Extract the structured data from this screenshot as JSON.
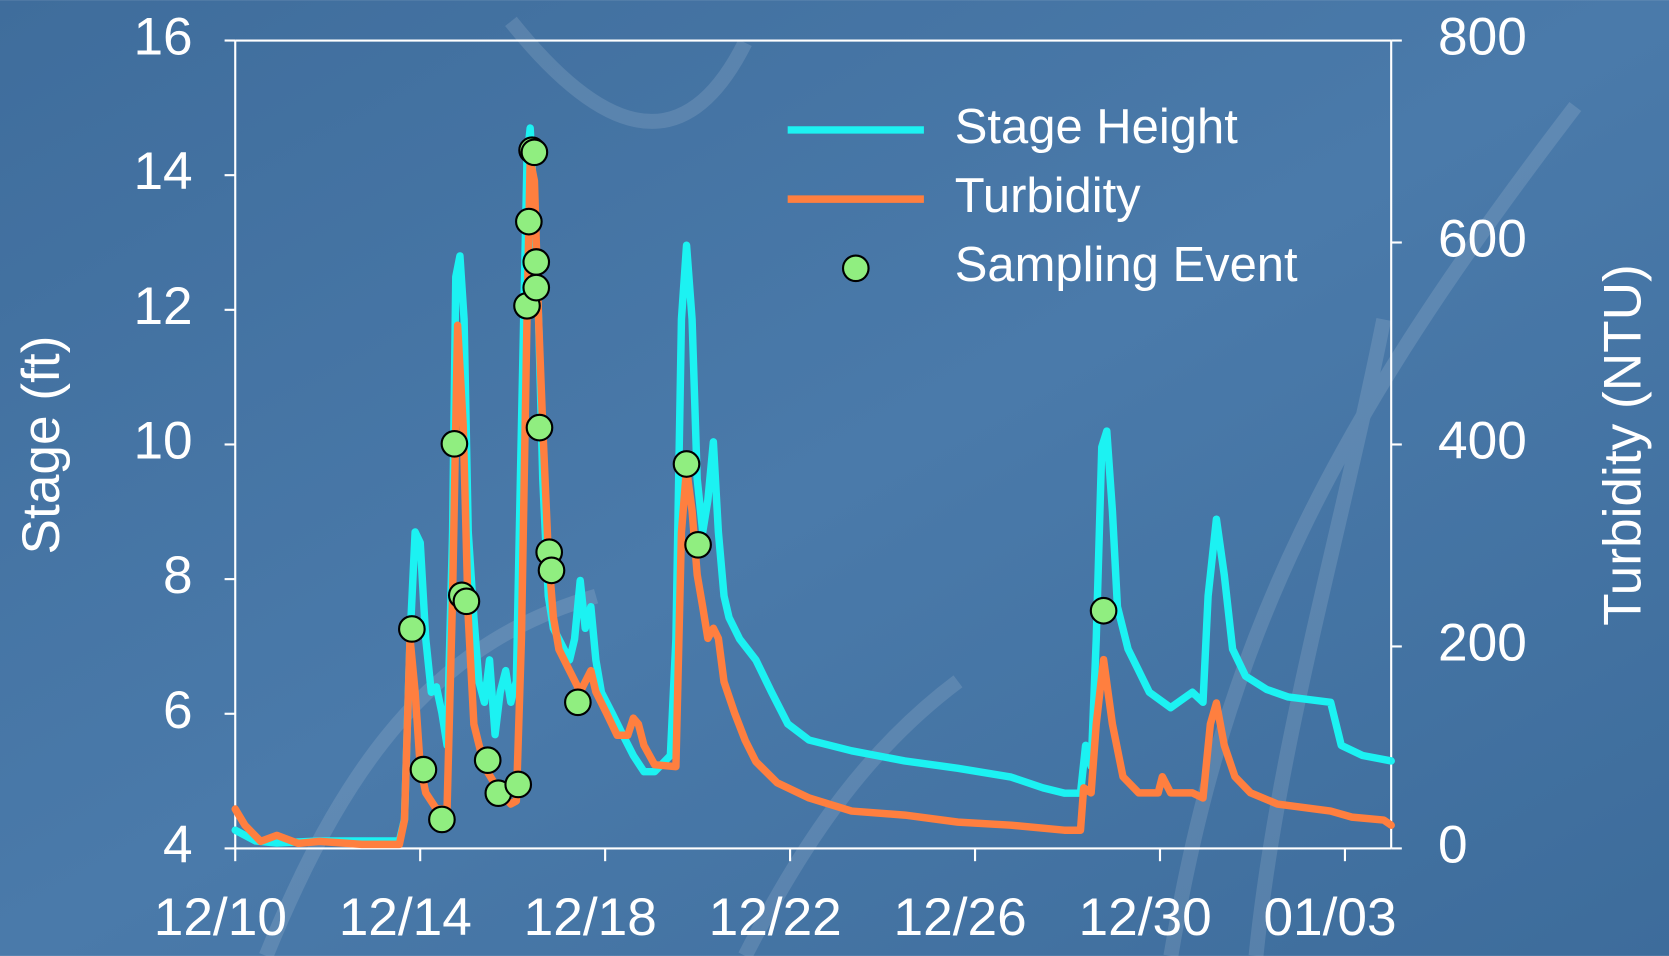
{
  "chart_data": {
    "type": "line",
    "ylabel": "Stage (ft)",
    "y2label": "Turbidity (NTU)",
    "xlim": [
      0,
      25
    ],
    "xticks": [
      {
        "value": 0,
        "label": "12/10"
      },
      {
        "value": 4,
        "label": "12/14"
      },
      {
        "value": 8,
        "label": "12/18"
      },
      {
        "value": 12,
        "label": "12/22"
      },
      {
        "value": 16,
        "label": "12/26"
      },
      {
        "value": 20,
        "label": "12/30"
      },
      {
        "value": 24,
        "label": "01/03"
      }
    ],
    "ylim": [
      4,
      16
    ],
    "yticks": [
      4,
      6,
      8,
      10,
      12,
      14,
      16
    ],
    "y2lim": [
      0,
      800
    ],
    "y2ticks": [
      0,
      200,
      400,
      600,
      800
    ],
    "legend": "top-right",
    "series": [
      {
        "name": "Stage Height",
        "type": "line",
        "color": "#1cf2f2",
        "axis": "y",
        "x": [
          0,
          0.44,
          0.9,
          1.82,
          2.74,
          3.55,
          3.66,
          3.78,
          3.89,
          4.0,
          4.12,
          4.24,
          4.35,
          4.47,
          4.58,
          4.7,
          4.77,
          4.86,
          4.95,
          5.04,
          5.16,
          5.27,
          5.39,
          5.5,
          5.62,
          5.73,
          5.85,
          5.96,
          6.08,
          6.19,
          6.31,
          6.38,
          6.47,
          6.56,
          6.65,
          6.77,
          6.88,
          7.11,
          7.23,
          7.34,
          7.46,
          7.57,
          7.69,
          7.8,
          7.92,
          8.15,
          8.38,
          8.61,
          8.84,
          9.07,
          9.41,
          9.53,
          9.65,
          9.76,
          9.88,
          9.99,
          10.11,
          10.22,
          10.34,
          10.45,
          10.57,
          10.68,
          10.91,
          11.26,
          11.6,
          11.95,
          12.41,
          13.33,
          14.48,
          15.63,
          16.78,
          17.47,
          17.93,
          18.28,
          18.39,
          18.51,
          18.62,
          18.74,
          18.85,
          18.97,
          19.08,
          19.31,
          19.54,
          19.77,
          20.23,
          20.7,
          20.93,
          21.04,
          21.22,
          21.39,
          21.57,
          21.85,
          22.31,
          22.77,
          23.69,
          23.92,
          24.38,
          25.0
        ],
        "values": [
          4.27,
          4.11,
          4.08,
          4.11,
          4.11,
          4.11,
          4.43,
          7.11,
          8.7,
          8.54,
          7.11,
          6.32,
          6.4,
          6.01,
          5.53,
          8.7,
          12.49,
          12.8,
          11.86,
          8.7,
          7.43,
          6.48,
          6.17,
          6.8,
          5.69,
          6.32,
          6.64,
          6.17,
          6.48,
          10.28,
          14.23,
          14.7,
          13.44,
          11.86,
          9.49,
          7.75,
          7.27,
          6.96,
          6.8,
          7.11,
          7.98,
          7.27,
          7.59,
          6.8,
          6.32,
          6.01,
          5.69,
          5.38,
          5.14,
          5.14,
          5.38,
          7.11,
          11.86,
          12.96,
          11.86,
          9.49,
          8.7,
          9.17,
          10.04,
          8.7,
          7.75,
          7.43,
          7.11,
          6.8,
          6.32,
          5.85,
          5.61,
          5.45,
          5.3,
          5.19,
          5.06,
          4.9,
          4.82,
          4.82,
          5.53,
          5.22,
          7.11,
          9.96,
          10.2,
          9.01,
          7.59,
          6.96,
          6.64,
          6.32,
          6.09,
          6.32,
          6.17,
          7.75,
          8.89,
          8.06,
          6.96,
          6.56,
          6.36,
          6.25,
          6.17,
          5.53,
          5.38,
          5.3
        ]
      },
      {
        "name": "Turbidity",
        "type": "line",
        "color": "#ff7f3f",
        "axis": "y2",
        "x": [
          0,
          0.21,
          0.55,
          0.9,
          1.36,
          1.82,
          2.74,
          3.55,
          3.66,
          3.78,
          3.89,
          4.0,
          4.12,
          4.35,
          4.58,
          4.7,
          4.81,
          4.93,
          5.04,
          5.16,
          5.39,
          5.73,
          5.96,
          6.08,
          6.19,
          6.31,
          6.38,
          6.47,
          6.56,
          6.65,
          6.77,
          6.88,
          7.0,
          7.23,
          7.46,
          7.69,
          7.8,
          8.03,
          8.26,
          8.49,
          8.61,
          8.72,
          8.84,
          9.07,
          9.53,
          9.65,
          9.76,
          9.88,
          9.99,
          10.11,
          10.22,
          10.34,
          10.45,
          10.57,
          10.8,
          11.03,
          11.26,
          11.72,
          12.41,
          13.33,
          14.48,
          15.63,
          16.78,
          17.93,
          18.28,
          18.35,
          18.51,
          18.62,
          18.78,
          18.97,
          19.2,
          19.54,
          19.96,
          20.05,
          20.23,
          20.7,
          20.93,
          21.09,
          21.22,
          21.39,
          21.62,
          21.96,
          22.54,
          23.69,
          24.15,
          24.84,
          25.0
        ],
        "values": [
          39,
          23,
          7,
          13,
          5,
          7,
          4,
          4,
          28,
          208,
          155,
          81,
          55,
          39,
          39,
          250,
          518,
          418,
          229,
          123,
          81,
          55,
          44,
          47,
          208,
          524,
          682,
          661,
          524,
          418,
          292,
          229,
          197,
          176,
          155,
          176,
          155,
          134,
          112,
          112,
          129,
          123,
          102,
          83,
          81,
          313,
          376,
          334,
          271,
          239,
          208,
          218,
          208,
          165,
          134,
          107,
          86,
          65,
          50,
          37,
          33,
          26,
          23,
          18,
          18,
          60,
          55,
          123,
          187,
          123,
          71,
          55,
          55,
          71,
          55,
          55,
          50,
          123,
          144,
          102,
          71,
          55,
          44,
          37,
          31,
          28,
          23
        ]
      },
      {
        "name": "Sampling Event",
        "type": "scatter",
        "color": "#90ee80",
        "axis": "y",
        "x": [
          3.82,
          4.07,
          4.47,
          4.74,
          4.9,
          5.0,
          5.46,
          5.69,
          6.12,
          6.31,
          6.35,
          6.42,
          6.47,
          6.51,
          6.51,
          6.58,
          6.79,
          6.84,
          7.41,
          9.76,
          10.01,
          18.78
        ],
        "values": [
          7.26,
          5.17,
          4.43,
          10.01,
          7.76,
          7.67,
          5.31,
          4.82,
          4.95,
          12.06,
          13.31,
          14.37,
          14.34,
          12.71,
          12.33,
          10.25,
          8.4,
          8.13,
          6.17,
          9.71,
          8.51,
          7.53
        ]
      }
    ]
  }
}
